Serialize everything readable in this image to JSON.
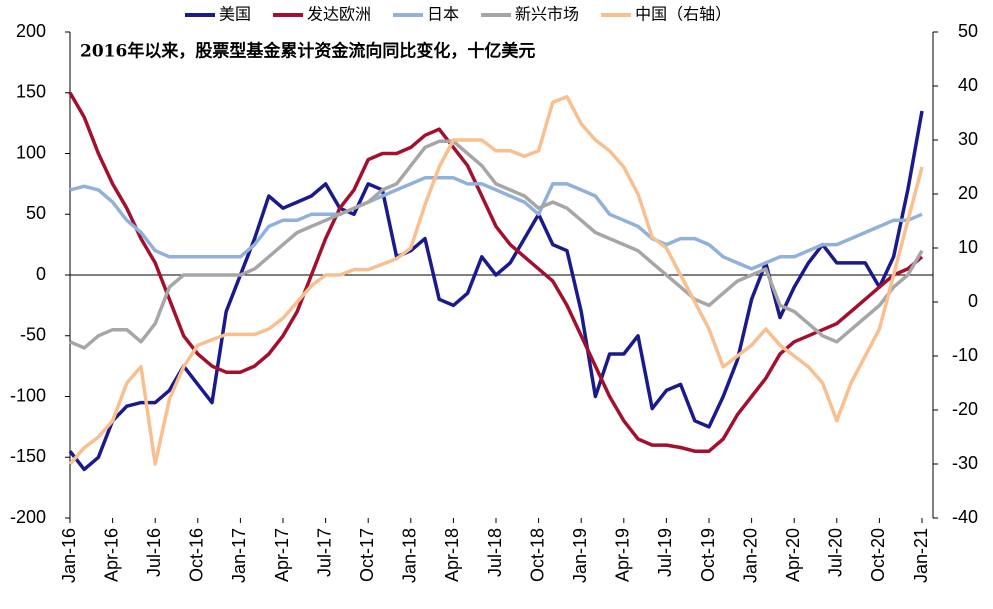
{
  "chart_data": {
    "type": "line",
    "title": "2016年以来，股票型基金累计资金流向同比变化，十亿美元",
    "categories": [
      "Jan-16",
      null,
      null,
      "Apr-16",
      null,
      null,
      "Jul-16",
      null,
      null,
      "Oct-16",
      null,
      null,
      "Jan-17",
      null,
      null,
      "Apr-17",
      null,
      null,
      "Jul-17",
      null,
      null,
      "Oct-17",
      null,
      null,
      "Jan-18",
      null,
      null,
      "Apr-18",
      null,
      null,
      "Jul-18",
      null,
      null,
      "Oct-18",
      null,
      null,
      "Jan-19",
      null,
      null,
      "Apr-19",
      null,
      null,
      "Jul-19",
      null,
      null,
      "Oct-19",
      null,
      null,
      "Jan-20",
      null,
      null,
      "Apr-20",
      null,
      null,
      "Jul-20",
      null,
      null,
      "Oct-20",
      null,
      null,
      "Jan-21"
    ],
    "series": [
      {
        "name": "美国",
        "color": "#1a1a8c",
        "values": [
          -145,
          -160,
          -150,
          -120,
          -108,
          -105,
          -105,
          -95,
          -75,
          -90,
          -105,
          -30,
          0,
          30,
          65,
          55,
          60,
          65,
          75,
          55,
          50,
          75,
          70,
          15,
          20,
          30,
          -20,
          -25,
          -15,
          15,
          0,
          10,
          30,
          50,
          25,
          20,
          -30,
          -100,
          -65,
          -65,
          -50,
          -110,
          -95,
          -90,
          -120,
          -125,
          -100,
          -70,
          -20,
          10,
          -35,
          -10,
          10,
          25,
          10,
          10,
          10,
          -10,
          15,
          70,
          135
        ]
      },
      {
        "name": "发达欧洲",
        "color": "#a3102d",
        "values": [
          150,
          130,
          100,
          75,
          55,
          30,
          10,
          -20,
          -50,
          -65,
          -75,
          -80,
          -80,
          -75,
          -65,
          -50,
          -30,
          0,
          30,
          55,
          70,
          95,
          100,
          100,
          105,
          115,
          120,
          105,
          90,
          65,
          40,
          25,
          15,
          5,
          -5,
          -25,
          -50,
          -75,
          -100,
          -120,
          -135,
          -140,
          -140,
          -142,
          -145,
          -145,
          -135,
          -115,
          -100,
          -85,
          -65,
          -55,
          -50,
          -45,
          -40,
          -30,
          -20,
          -10,
          0,
          5,
          15
        ]
      },
      {
        "name": "日本",
        "color": "#8fb1da",
        "values": [
          70,
          73,
          70,
          60,
          45,
          35,
          20,
          15,
          15,
          15,
          15,
          15,
          15,
          25,
          40,
          45,
          45,
          50,
          50,
          50,
          55,
          60,
          65,
          70,
          75,
          80,
          80,
          80,
          75,
          75,
          70,
          65,
          60,
          50,
          75,
          75,
          70,
          65,
          50,
          45,
          40,
          30,
          25,
          30,
          30,
          25,
          15,
          10,
          5,
          10,
          15,
          15,
          20,
          25,
          25,
          30,
          35,
          40,
          45,
          45,
          50
        ]
      },
      {
        "name": "新兴市场",
        "color": "#a6a6a6",
        "values": [
          -55,
          -60,
          -50,
          -45,
          -45,
          -55,
          -40,
          -10,
          0,
          0,
          0,
          0,
          0,
          5,
          15,
          25,
          35,
          40,
          45,
          50,
          55,
          60,
          70,
          75,
          90,
          105,
          110,
          110,
          100,
          90,
          75,
          70,
          65,
          55,
          60,
          55,
          45,
          35,
          30,
          25,
          20,
          10,
          0,
          -10,
          -20,
          -25,
          -15,
          -5,
          0,
          5,
          -25,
          -30,
          -40,
          -50,
          -55,
          -45,
          -35,
          -25,
          -10,
          0,
          20
        ]
      },
      {
        "name": "中国（右轴）",
        "color": "#f9bf8f",
        "axis": "y2",
        "values": [
          -30,
          -27,
          -25,
          -22,
          -15,
          -12,
          -30,
          -18,
          -12,
          -8,
          -7,
          -6,
          -6,
          -6,
          -5,
          -3,
          0,
          3,
          5,
          5,
          6,
          6,
          7,
          8,
          10,
          18,
          25,
          30,
          30,
          30,
          28,
          28,
          27,
          28,
          37,
          38,
          33,
          30,
          28,
          25,
          20,
          12,
          10,
          5,
          0,
          -5,
          -12,
          -10,
          -8,
          -5,
          -8,
          -10,
          -12,
          -15,
          -22,
          -15,
          -10,
          -5,
          5,
          15,
          25
        ]
      }
    ],
    "ylim": [
      -200,
      200
    ],
    "yticks": [
      -200,
      -150,
      -100,
      -50,
      0,
      50,
      100,
      150,
      200
    ],
    "y2lim": [
      -40,
      50
    ],
    "y2ticks": [
      -40,
      -30,
      -20,
      -10,
      0,
      10,
      20,
      30,
      40,
      50
    ],
    "negative_tick_color": "#ff0000",
    "legend": "top"
  }
}
